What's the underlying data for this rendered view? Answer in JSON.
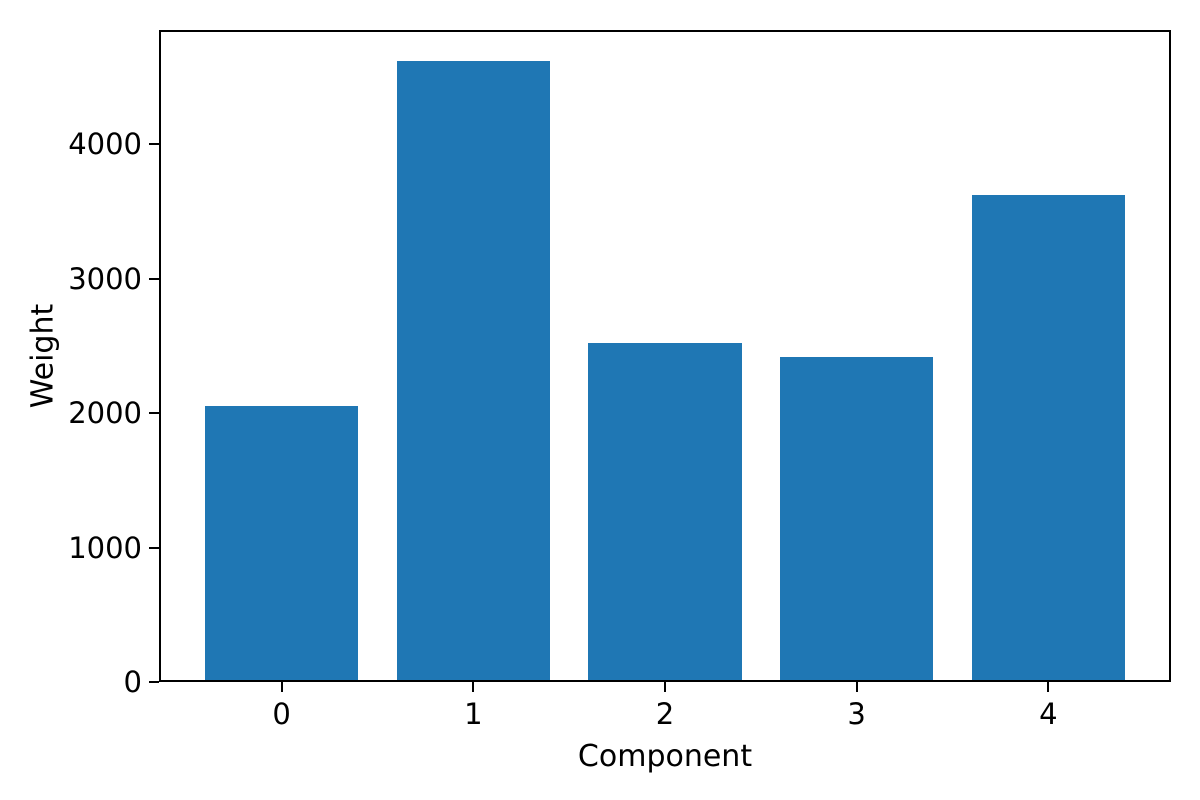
{
  "chart_data": {
    "type": "bar",
    "title": "",
    "xlabel": "Component",
    "ylabel": "Weight",
    "categories": [
      0,
      1,
      2,
      3,
      4
    ],
    "values": [
      2050,
      4620,
      2520,
      2420,
      3620
    ],
    "bar_color": "#1f77b4",
    "bar_width": 0.8,
    "xlim": [
      -0.64,
      4.64
    ],
    "ylim": [
      0,
      4850
    ],
    "xticks": [
      0,
      1,
      2,
      3,
      4
    ],
    "yticks": [
      0,
      1000,
      2000,
      3000,
      4000
    ],
    "grid": false,
    "legend_visible": false,
    "axis_color": "#000000",
    "background_color": "#ffffff"
  }
}
